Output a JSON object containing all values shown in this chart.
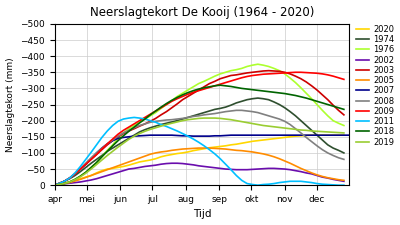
{
  "title": "Neerslagtekort De Kooij (1964 - 2020)",
  "xlabel": "Tijd",
  "ylabel": "Neerslagtekort (mm)",
  "background": "#ffffff",
  "yticks": [
    0,
    -50,
    -100,
    -150,
    -200,
    -250,
    -300,
    -350,
    -400,
    -450,
    -500
  ],
  "series": {
    "2020": {
      "color": "#FFD700",
      "lw": 1.2,
      "x": [
        91,
        95,
        100,
        105,
        110,
        115,
        120,
        125,
        130,
        135,
        140,
        145,
        150,
        155,
        160,
        165,
        170,
        175,
        180,
        185,
        190,
        195,
        200,
        205,
        210,
        215,
        220,
        225,
        230,
        235,
        240,
        245,
        250,
        255,
        260,
        265,
        270,
        275,
        280,
        285,
        290,
        295,
        300,
        305,
        310,
        315,
        320,
        325,
        330,
        335,
        340,
        345,
        350,
        355,
        360
      ],
      "y": [
        0,
        -3,
        -6,
        -10,
        -15,
        -20,
        -25,
        -30,
        -38,
        -45,
        -50,
        -52,
        -55,
        -58,
        -62,
        -67,
        -72,
        -75,
        -78,
        -82,
        -88,
        -92,
        -95,
        -98,
        -100,
        -103,
        -107,
        -110,
        -113,
        -116,
        -118,
        -120,
        -122,
        -125,
        -127,
        -130,
        -133,
        -136,
        -138,
        -140,
        -142,
        -144,
        -146,
        -148,
        -150,
        -152,
        -153,
        -154,
        -155,
        -155,
        -155,
        -155,
        -155,
        -155,
        -155
      ]
    },
    "1974": {
      "color": "#2F4F2F",
      "lw": 1.2,
      "x": [
        91,
        95,
        100,
        105,
        110,
        115,
        120,
        125,
        130,
        135,
        140,
        145,
        150,
        155,
        160,
        165,
        170,
        175,
        180,
        185,
        190,
        195,
        200,
        205,
        210,
        215,
        220,
        225,
        230,
        235,
        240,
        245,
        250,
        255,
        260,
        265,
        270,
        275,
        280,
        285,
        290,
        295,
        300,
        305,
        310,
        315,
        320,
        325,
        330,
        335,
        340,
        345,
        350,
        355,
        360
      ],
      "y": [
        0,
        -5,
        -12,
        -20,
        -30,
        -42,
        -55,
        -68,
        -80,
        -92,
        -105,
        -115,
        -125,
        -135,
        -145,
        -155,
        -165,
        -172,
        -178,
        -183,
        -188,
        -192,
        -196,
        -200,
        -205,
        -210,
        -215,
        -220,
        -225,
        -230,
        -235,
        -238,
        -242,
        -248,
        -255,
        -260,
        -265,
        -268,
        -270,
        -268,
        -265,
        -258,
        -250,
        -240,
        -228,
        -215,
        -200,
        -185,
        -170,
        -155,
        -140,
        -125,
        -115,
        -108,
        -100
      ]
    },
    "1976": {
      "color": "#ADFF2F",
      "lw": 1.2,
      "x": [
        91,
        95,
        100,
        105,
        110,
        115,
        120,
        125,
        130,
        135,
        140,
        145,
        150,
        155,
        160,
        165,
        170,
        175,
        180,
        185,
        190,
        195,
        200,
        205,
        210,
        215,
        220,
        225,
        230,
        235,
        240,
        245,
        250,
        255,
        260,
        265,
        270,
        275,
        280,
        285,
        290,
        295,
        300,
        305,
        310,
        315,
        320,
        325,
        330,
        335,
        340,
        345,
        350,
        355,
        360
      ],
      "y": [
        0,
        -2,
        -5,
        -10,
        -18,
        -28,
        -40,
        -55,
        -70,
        -88,
        -108,
        -125,
        -145,
        -162,
        -175,
        -185,
        -195,
        -205,
        -215,
        -225,
        -238,
        -250,
        -262,
        -275,
        -285,
        -295,
        -305,
        -315,
        -322,
        -330,
        -338,
        -345,
        -350,
        -355,
        -358,
        -362,
        -368,
        -372,
        -375,
        -372,
        -368,
        -362,
        -355,
        -345,
        -332,
        -318,
        -302,
        -285,
        -268,
        -250,
        -232,
        -215,
        -200,
        -192,
        -185
      ]
    },
    "2002": {
      "color": "#6A0DAD",
      "lw": 1.2,
      "x": [
        91,
        95,
        100,
        105,
        110,
        115,
        120,
        125,
        130,
        135,
        140,
        145,
        150,
        155,
        160,
        165,
        170,
        175,
        180,
        185,
        190,
        195,
        200,
        205,
        210,
        215,
        220,
        225,
        230,
        235,
        240,
        245,
        250,
        255,
        260,
        265,
        270,
        275,
        280,
        285,
        290,
        295,
        300,
        305,
        310,
        315,
        320,
        325,
        330,
        335,
        340,
        345,
        350,
        355,
        360
      ],
      "y": [
        0,
        -2,
        -4,
        -6,
        -8,
        -10,
        -13,
        -16,
        -20,
        -25,
        -30,
        -35,
        -40,
        -45,
        -50,
        -52,
        -55,
        -58,
        -60,
        -62,
        -65,
        -67,
        -68,
        -68,
        -67,
        -65,
        -63,
        -60,
        -58,
        -56,
        -54,
        -52,
        -50,
        -49,
        -48,
        -48,
        -48,
        -49,
        -50,
        -51,
        -52,
        -52,
        -51,
        -50,
        -48,
        -45,
        -42,
        -38,
        -35,
        -30,
        -25,
        -22,
        -18,
        -15,
        -12
      ]
    },
    "2003": {
      "color": "#CC0000",
      "lw": 1.2,
      "x": [
        91,
        95,
        100,
        105,
        110,
        115,
        120,
        125,
        130,
        135,
        140,
        145,
        150,
        155,
        160,
        165,
        170,
        175,
        180,
        185,
        190,
        195,
        200,
        205,
        210,
        215,
        220,
        225,
        230,
        235,
        240,
        245,
        250,
        255,
        260,
        265,
        270,
        275,
        280,
        285,
        290,
        295,
        300,
        305,
        310,
        315,
        320,
        325,
        330,
        335,
        340,
        345,
        350,
        355,
        360
      ],
      "y": [
        0,
        -5,
        -12,
        -22,
        -35,
        -50,
        -65,
        -80,
        -95,
        -110,
        -125,
        -138,
        -150,
        -160,
        -168,
        -175,
        -183,
        -190,
        -198,
        -207,
        -218,
        -228,
        -240,
        -252,
        -265,
        -275,
        -285,
        -295,
        -305,
        -315,
        -322,
        -330,
        -335,
        -340,
        -342,
        -345,
        -348,
        -350,
        -352,
        -354,
        -355,
        -354,
        -353,
        -350,
        -345,
        -338,
        -330,
        -320,
        -308,
        -295,
        -280,
        -265,
        -248,
        -232,
        -218
      ]
    },
    "2005": {
      "color": "#FF8C00",
      "lw": 1.2,
      "x": [
        91,
        95,
        100,
        105,
        110,
        115,
        120,
        125,
        130,
        135,
        140,
        145,
        150,
        155,
        160,
        165,
        170,
        175,
        180,
        185,
        190,
        195,
        200,
        205,
        210,
        215,
        220,
        225,
        230,
        235,
        240,
        245,
        250,
        255,
        260,
        265,
        270,
        275,
        280,
        285,
        290,
        295,
        300,
        305,
        310,
        315,
        320,
        325,
        330,
        335,
        340,
        345,
        350,
        355,
        360
      ],
      "y": [
        0,
        -2,
        -5,
        -8,
        -13,
        -18,
        -24,
        -30,
        -36,
        -42,
        -48,
        -54,
        -60,
        -66,
        -72,
        -78,
        -84,
        -90,
        -96,
        -100,
        -103,
        -105,
        -108,
        -110,
        -112,
        -113,
        -114,
        -115,
        -115,
        -115,
        -114,
        -113,
        -112,
        -110,
        -108,
        -107,
        -105,
        -103,
        -100,
        -97,
        -93,
        -88,
        -82,
        -75,
        -68,
        -60,
        -52,
        -45,
        -38,
        -32,
        -27,
        -23,
        -20,
        -17,
        -15
      ]
    },
    "2007": {
      "color": "#00008B",
      "lw": 1.2,
      "x": [
        91,
        95,
        100,
        105,
        110,
        115,
        120,
        125,
        130,
        135,
        140,
        145,
        150,
        155,
        160,
        165,
        170,
        175,
        180,
        185,
        190,
        195,
        200,
        205,
        210,
        215,
        220,
        225,
        230,
        235,
        240,
        245,
        250,
        255,
        260,
        265,
        270,
        275,
        280,
        285,
        290,
        295,
        300,
        305,
        310,
        315,
        320,
        325,
        330,
        335,
        340,
        345,
        350,
        355,
        360,
        365
      ],
      "y": [
        0,
        -5,
        -12,
        -22,
        -35,
        -50,
        -65,
        -82,
        -100,
        -115,
        -128,
        -138,
        -145,
        -148,
        -150,
        -152,
        -153,
        -154,
        -155,
        -155,
        -155,
        -155,
        -155,
        -154,
        -153,
        -153,
        -152,
        -152,
        -152,
        -152,
        -153,
        -153,
        -154,
        -155,
        -155,
        -155,
        -155,
        -155,
        -155,
        -155,
        -155,
        -155,
        -155,
        -155,
        -155,
        -155,
        -155,
        -155,
        -155,
        -155,
        -155,
        -155,
        -155,
        -155,
        -155,
        -155
      ]
    },
    "2008": {
      "color": "#808080",
      "lw": 1.2,
      "x": [
        91,
        95,
        100,
        105,
        110,
        115,
        120,
        125,
        130,
        135,
        140,
        145,
        150,
        155,
        160,
        165,
        170,
        175,
        180,
        185,
        190,
        195,
        200,
        205,
        210,
        215,
        220,
        225,
        230,
        235,
        240,
        245,
        250,
        255,
        260,
        265,
        270,
        275,
        280,
        285,
        290,
        295,
        300,
        305,
        310,
        315,
        320,
        325,
        330,
        335,
        340,
        345,
        350,
        355,
        360
      ],
      "y": [
        0,
        -5,
        -12,
        -22,
        -35,
        -50,
        -68,
        -85,
        -100,
        -115,
        -128,
        -140,
        -152,
        -162,
        -170,
        -178,
        -185,
        -190,
        -195,
        -198,
        -200,
        -202,
        -203,
        -205,
        -207,
        -210,
        -213,
        -215,
        -218,
        -220,
        -222,
        -225,
        -228,
        -230,
        -232,
        -232,
        -230,
        -228,
        -225,
        -220,
        -215,
        -210,
        -205,
        -198,
        -188,
        -175,
        -162,
        -148,
        -135,
        -122,
        -110,
        -100,
        -92,
        -85,
        -80
      ]
    },
    "2009": {
      "color": "#FF0000",
      "lw": 1.2,
      "x": [
        91,
        95,
        100,
        105,
        110,
        115,
        120,
        125,
        130,
        135,
        140,
        145,
        150,
        155,
        160,
        165,
        170,
        175,
        180,
        185,
        190,
        195,
        200,
        205,
        210,
        215,
        220,
        225,
        230,
        235,
        240,
        245,
        250,
        255,
        260,
        265,
        270,
        275,
        280,
        285,
        290,
        295,
        300,
        305,
        310,
        315,
        320,
        325,
        330,
        335,
        340,
        345,
        350,
        355,
        360
      ],
      "y": [
        0,
        -5,
        -12,
        -22,
        -35,
        -50,
        -65,
        -80,
        -95,
        -112,
        -128,
        -143,
        -158,
        -170,
        -180,
        -190,
        -200,
        -210,
        -220,
        -230,
        -240,
        -250,
        -260,
        -268,
        -275,
        -282,
        -288,
        -293,
        -298,
        -303,
        -308,
        -313,
        -318,
        -323,
        -328,
        -333,
        -337,
        -340,
        -342,
        -344,
        -345,
        -346,
        -347,
        -348,
        -349,
        -350,
        -350,
        -349,
        -348,
        -347,
        -345,
        -342,
        -338,
        -333,
        -328
      ]
    },
    "2011": {
      "color": "#00BFFF",
      "lw": 1.2,
      "x": [
        91,
        95,
        100,
        105,
        110,
        115,
        120,
        125,
        130,
        135,
        140,
        145,
        150,
        155,
        160,
        165,
        170,
        175,
        180,
        185,
        190,
        195,
        200,
        205,
        210,
        215,
        220,
        225,
        230,
        235,
        240,
        245,
        250,
        255,
        260,
        265,
        270,
        275,
        280,
        285,
        290,
        295,
        300,
        305,
        310,
        315,
        320,
        325,
        330,
        335,
        340,
        345,
        350,
        355,
        360
      ],
      "y": [
        0,
        -5,
        -12,
        -22,
        -38,
        -58,
        -80,
        -102,
        -125,
        -148,
        -168,
        -185,
        -198,
        -205,
        -208,
        -210,
        -208,
        -205,
        -200,
        -195,
        -188,
        -182,
        -175,
        -168,
        -160,
        -152,
        -143,
        -133,
        -122,
        -110,
        -97,
        -82,
        -65,
        -48,
        -30,
        -15,
        -5,
        -2,
        0,
        -2,
        -3,
        -5,
        -8,
        -10,
        -12,
        -12,
        -12,
        -10,
        -8,
        -5,
        -3,
        -2,
        -1,
        0,
        0
      ]
    },
    "2018": {
      "color": "#006400",
      "lw": 1.2,
      "x": [
        91,
        95,
        100,
        105,
        110,
        115,
        120,
        125,
        130,
        135,
        140,
        145,
        150,
        155,
        160,
        165,
        170,
        175,
        180,
        185,
        190,
        195,
        200,
        205,
        210,
        215,
        220,
        225,
        230,
        235,
        240,
        245,
        250,
        255,
        260,
        265,
        270,
        275,
        280,
        285,
        290,
        295,
        300,
        305,
        310,
        315,
        320,
        325,
        330,
        335,
        340,
        345,
        350,
        355,
        360
      ],
      "y": [
        0,
        -2,
        -5,
        -10,
        -18,
        -28,
        -40,
        -55,
        -70,
        -88,
        -105,
        -122,
        -138,
        -153,
        -167,
        -180,
        -193,
        -205,
        -218,
        -230,
        -242,
        -253,
        -263,
        -272,
        -280,
        -287,
        -293,
        -298,
        -302,
        -305,
        -308,
        -310,
        -308,
        -306,
        -303,
        -300,
        -298,
        -296,
        -294,
        -292,
        -290,
        -288,
        -286,
        -284,
        -281,
        -278,
        -274,
        -270,
        -265,
        -260,
        -255,
        -250,
        -245,
        -240,
        -235
      ]
    },
    "2019": {
      "color": "#9ACD32",
      "lw": 1.2,
      "x": [
        91,
        95,
        100,
        105,
        110,
        115,
        120,
        125,
        130,
        135,
        140,
        145,
        150,
        155,
        160,
        165,
        170,
        175,
        180,
        185,
        190,
        195,
        200,
        205,
        210,
        215,
        220,
        225,
        230,
        235,
        240,
        245,
        250,
        255,
        260,
        265,
        270,
        275,
        280,
        285,
        290,
        295,
        300,
        305,
        310,
        315,
        320,
        325,
        330,
        335,
        340,
        345,
        350,
        355,
        360
      ],
      "y": [
        0,
        -2,
        -5,
        -10,
        -17,
        -26,
        -37,
        -50,
        -64,
        -78,
        -92,
        -105,
        -118,
        -130,
        -142,
        -152,
        -160,
        -167,
        -173,
        -178,
        -183,
        -188,
        -192,
        -196,
        -200,
        -203,
        -205,
        -207,
        -208,
        -208,
        -208,
        -207,
        -205,
        -203,
        -200,
        -197,
        -194,
        -191,
        -188,
        -185,
        -183,
        -181,
        -179,
        -177,
        -175,
        -173,
        -171,
        -170,
        -168,
        -167,
        -166,
        -165,
        -164,
        -163,
        -162
      ]
    }
  },
  "legend_order": [
    "2020",
    "1974",
    "1976",
    "2002",
    "2003",
    "2005",
    "2007",
    "2008",
    "2009",
    "2011",
    "2018",
    "2019"
  ],
  "month_ticks": [
    91,
    121,
    152,
    182,
    213,
    244,
    274,
    305,
    335
  ],
  "month_labels": [
    "apr",
    "mei",
    "jun",
    "jul",
    "aug",
    "sep",
    "okt",
    "nov",
    "dec"
  ]
}
